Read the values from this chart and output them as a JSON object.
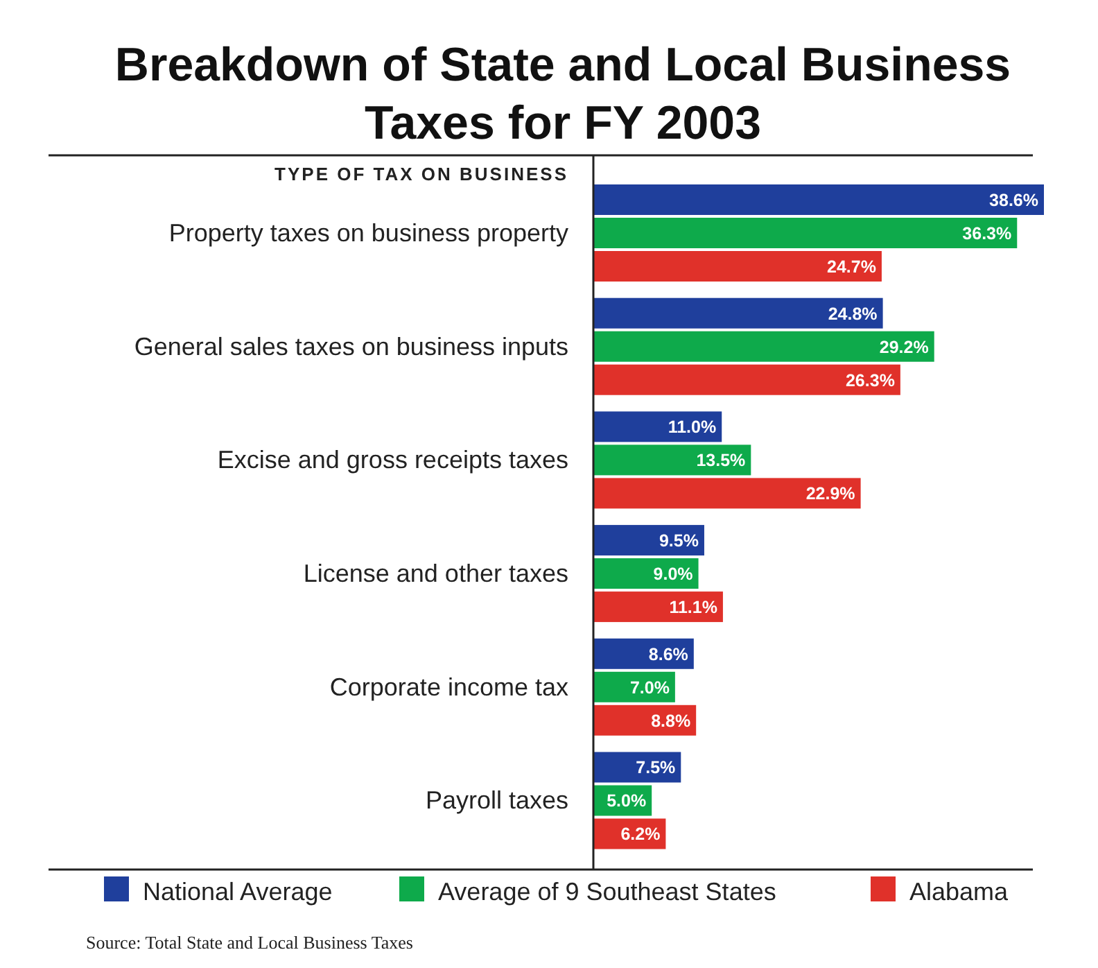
{
  "chart_data": {
    "type": "bar",
    "orientation": "horizontal",
    "title": "Breakdown of State and Local Business Taxes for FY 2003",
    "ylabel": "TYPE OF TAX ON BUSINESS",
    "categories": [
      "Property taxes on business property",
      "General sales taxes on business inputs",
      "Excise and gross receipts taxes",
      "License and other taxes",
      "Corporate income tax",
      "Payroll taxes"
    ],
    "series": [
      {
        "name": "National Average",
        "color": "#1f3f9c",
        "values": [
          38.6,
          24.8,
          11.0,
          9.5,
          8.6,
          7.5
        ],
        "value_labels": [
          "38.6%",
          "24.8%",
          "11.0%",
          "9.5%",
          "8.6%",
          "7.5%"
        ]
      },
      {
        "name": "Average of 9 Southeast States",
        "color": "#0eaa4b",
        "values": [
          36.3,
          29.2,
          13.5,
          9.0,
          7.0,
          5.0
        ],
        "value_labels": [
          "36.3%",
          "29.2%",
          "13.5%",
          "9.0%",
          "7.0%",
          "5.0%"
        ]
      },
      {
        "name": "Alabama",
        "color": "#e0312a",
        "values": [
          24.7,
          26.3,
          22.9,
          11.1,
          8.8,
          6.2
        ],
        "value_labels": [
          "24.7%",
          "26.3%",
          "22.9%",
          "11.1%",
          "8.8%",
          "6.2%"
        ]
      }
    ],
    "legend": "bottom",
    "annotations": [
      "Source: Total State and Local Business Taxes"
    ]
  }
}
